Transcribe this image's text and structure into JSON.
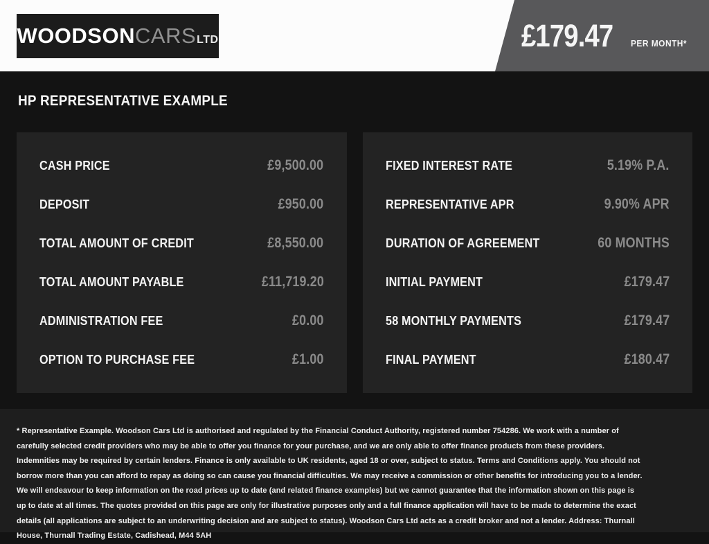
{
  "header": {
    "logo": {
      "primary": "WOODSON",
      "secondary": "CARS",
      "suffix": "LTD"
    },
    "price": "£179.47",
    "price_period": "PER MONTH*"
  },
  "finance": {
    "heading": "HP REPRESENTATIVE EXAMPLE",
    "left": [
      {
        "label": "CASH PRICE",
        "value": "£9,500.00"
      },
      {
        "label": "DEPOSIT",
        "value": "£950.00"
      },
      {
        "label": "TOTAL AMOUNT OF CREDIT",
        "value": "£8,550.00"
      },
      {
        "label": "TOTAL AMOUNT PAYABLE",
        "value": "£11,719.20"
      },
      {
        "label": "ADMINISTRATION FEE",
        "value": "£0.00"
      },
      {
        "label": "OPTION TO PURCHASE FEE",
        "value": "£1.00"
      }
    ],
    "right": [
      {
        "label": "FIXED INTEREST RATE",
        "value": "5.19% P.A."
      },
      {
        "label": "REPRESENTATIVE APR",
        "value": "9.90% APR"
      },
      {
        "label": "DURATION OF AGREEMENT",
        "value": "60 MONTHS"
      },
      {
        "label": "INITIAL PAYMENT",
        "value": "£179.47"
      },
      {
        "label": "58 MONTHLY PAYMENTS",
        "value": "£179.47"
      },
      {
        "label": "FINAL PAYMENT",
        "value": "£180.47"
      }
    ]
  },
  "disclaimer": "* Representative Example. Woodson Cars Ltd is authorised and regulated by the Financial Conduct Authority, registered number 754286. We work with a number of carefully selected credit providers who may be able to offer you finance for your purchase, and we are only able to offer finance products from these providers. Indemnities may be required by certain lenders. Finance is only available to UK residents, aged 18 or over, subject to status. Terms and Conditions apply. You should not borrow more than you can afford to repay as doing so can cause you financial difficulties. We may receive a commission or other benefits for introducing you to a lender. We will endeavour to keep information on the road prices up to date (and related finance examples) but we cannot guarantee that the information shown on this page is up to date at all times. The quotes provided on this page are only for illustrative purposes only and a full finance application will have to be made to determine the exact details (all applications are subject to an underwriting decision and are subject to status). Woodson Cars Ltd acts as a credit broker and not a lender. Address: Thurnall House, Thurnall Trading Estate, Cadishead, M44 5AH",
  "colors": {
    "banner_gray": "#58585a",
    "page_bg": "#131313",
    "panel_bg": "#232323",
    "footer_bg": "#1e1e1e",
    "value_gray": "#8a8a8a"
  }
}
